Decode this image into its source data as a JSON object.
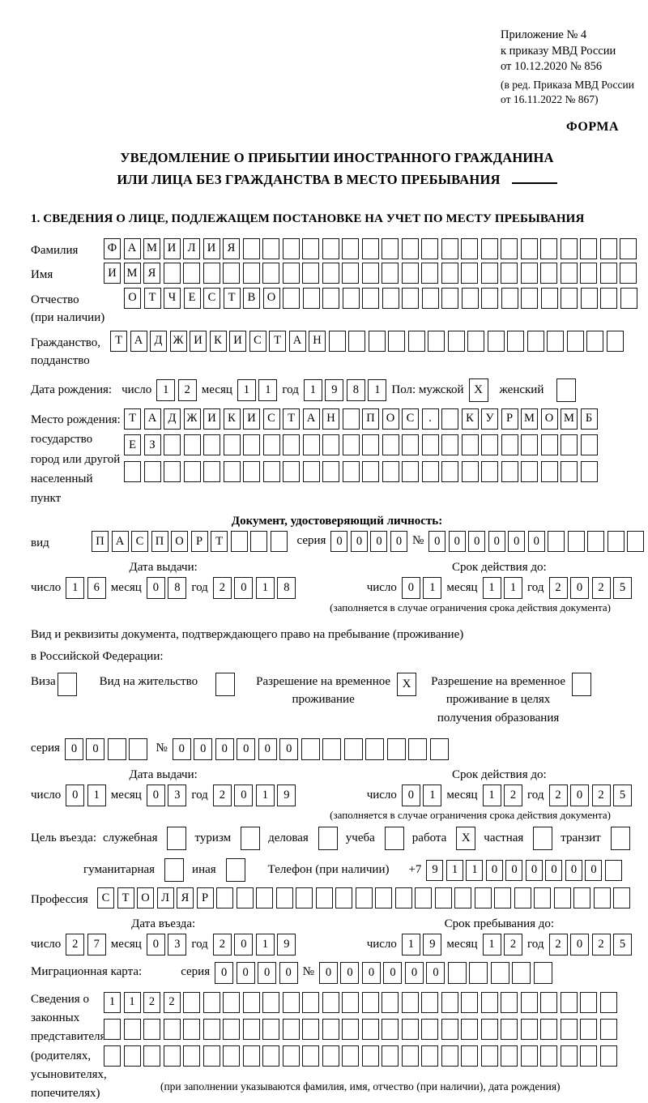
{
  "ref": {
    "lines": [
      "Приложение № 4",
      "к приказу МВД России",
      "от 10.12.2020 № 856"
    ],
    "amend_lines": [
      "(в ред. Приказа МВД России",
      "от 16.11.2022 № 867)"
    ],
    "form_marker": "ФОРМА"
  },
  "title": {
    "line1": "УВЕДОМЛЕНИЕ О ПРИБЫТИИ ИНОСТРАННОГО ГРАЖДАНИНА",
    "line2": "ИЛИ ЛИЦА БЕЗ ГРАЖДАНСТВА В МЕСТО ПРЕБЫВАНИЯ"
  },
  "section1_heading": "1. СВЕДЕНИЯ О ЛИЦЕ, ПОДЛЕЖАЩЕМ ПОСТАНОВКЕ НА УЧЕТ ПО МЕСТУ ПРЕБЫВАНИЯ",
  "labels": {
    "surname": "Фамилия",
    "given_name": "Имя",
    "patronymic": "Отчество",
    "patronymic_note": "(при наличии)",
    "citizenship_line1": "Гражданство,",
    "citizenship_line2": "подданство",
    "birth_date": "Дата рождения:",
    "day": "число",
    "month": "месяц",
    "year": "год",
    "sex_male": "Пол: мужской",
    "sex_female": "женский",
    "birth_place_line1": "Место рождения:",
    "birth_place_line2": "государство",
    "birth_place_line3": "город или другой",
    "birth_place_line4": "населенный пункт",
    "identity_doc_heading": "Документ, удостоверяющий личность:",
    "doc_type": "вид",
    "series": "серия",
    "number": "№",
    "validity_note": "(заполняется в случае ограничения срока действия документа)",
    "residence_doc_line1": "Вид и реквизиты документа, подтверждающего право на пребывание (проживание)",
    "residence_doc_line2": "в Российской Федерации:",
    "visa": "Виза",
    "residence_permit": "Вид на жительство",
    "temp_residence_line1": "Разрешение на временное",
    "temp_residence_line2": "проживание",
    "temp_edu_line1": "Разрешение на временное",
    "temp_edu_line2": "проживание в целях",
    "temp_edu_line3": "получения образования",
    "entry_purpose": "Цель въезда:",
    "purpose_official": "служебная",
    "purpose_tourism": "туризм",
    "purpose_business": "деловая",
    "purpose_study": "учеба",
    "purpose_work": "работа",
    "purpose_private": "частная",
    "purpose_transit": "транзит",
    "purpose_humanitarian": "гуманитарная",
    "purpose_other": "иная",
    "phone": "Телефон (при наличии)",
    "phone_prefix": "+7",
    "profession": "Профессия",
    "migration_card": "Миграционная карта:",
    "guardian_line1": "Сведения о",
    "guardian_line2": "законных",
    "guardian_line3": "представителях",
    "guardian_line4": "(родителях,",
    "guardian_line5": "усыновителях,",
    "guardian_line6": "попечителях)",
    "guardian_note": "(при заполнении указываются фамилия, имя, отчество (при наличии), дата рождения)"
  },
  "grids": {
    "surname": {
      "cells": [
        "Ф",
        "А",
        "М",
        "И",
        "Л",
        "И",
        "Я"
      ],
      "total": 27
    },
    "given_name": {
      "cells": [
        "И",
        "М",
        "Я"
      ],
      "total": 27
    },
    "patronymic": {
      "cells": [
        "О",
        "Т",
        "Ч",
        "Е",
        "С",
        "Т",
        "В",
        "О"
      ],
      "total": 26
    },
    "citizenship": {
      "cells": [
        "Т",
        "А",
        "Д",
        "Ж",
        "И",
        "К",
        "И",
        "С",
        "Т",
        "А",
        "Н"
      ],
      "total": 26
    },
    "birth_day": {
      "cells": [
        "1",
        "2"
      ]
    },
    "birth_month": {
      "cells": [
        "1",
        "1"
      ]
    },
    "birth_year": {
      "cells": [
        "1",
        "9",
        "8",
        "1"
      ]
    },
    "birthplace_row1": {
      "cells": [
        "Т",
        "А",
        "Д",
        "Ж",
        "И",
        "К",
        "И",
        "С",
        "Т",
        "А",
        "Н",
        "",
        "П",
        "О",
        "С",
        ".",
        "",
        "К",
        "У",
        "Р",
        "М",
        "О",
        "М",
        "Б"
      ],
      "total": 24
    },
    "birthplace_row2": {
      "cells": [
        "Е",
        "З"
      ],
      "total": 24
    },
    "birthplace_row3": {
      "cells": [],
      "total": 24
    },
    "doc_type": {
      "cells": [
        "П",
        "А",
        "С",
        "П",
        "О",
        "Р",
        "Т"
      ],
      "total": 10
    },
    "doc_series": {
      "cells": [
        "0",
        "0",
        "0",
        "0"
      ],
      "total": 4
    },
    "doc_number": {
      "cells": [
        "0",
        "0",
        "0",
        "0",
        "0",
        "0"
      ],
      "total": 11
    },
    "res_series": {
      "cells": [
        "0",
        "0"
      ],
      "total": 4
    },
    "res_number": {
      "cells": [
        "0",
        "0",
        "0",
        "0",
        "0",
        "0"
      ],
      "total": 13
    },
    "phone": {
      "cells": [
        "9",
        "1",
        "1",
        "0",
        "0",
        "0",
        "0",
        "0",
        "0"
      ],
      "total": 10
    },
    "profession": {
      "cells": [
        "С",
        "Т",
        "О",
        "Л",
        "Я",
        "Р"
      ],
      "total": 27
    },
    "mig_series": {
      "cells": [
        "0",
        "0",
        "0",
        "0"
      ],
      "total": 4
    },
    "mig_number": {
      "cells": [
        "0",
        "0",
        "0",
        "0",
        "0",
        "0"
      ],
      "total": 11
    },
    "guardians_row1": {
      "cells": [
        "1",
        "1",
        "2",
        "2"
      ],
      "total": 26
    },
    "guardians_row2": {
      "cells": [],
      "total": 26
    },
    "guardians_row3": {
      "cells": [],
      "total": 26
    }
  },
  "dates": {
    "passport_issue": {
      "header": "Дата выдачи:",
      "day": {
        "cells": [
          "1",
          "6"
        ]
      },
      "month": {
        "cells": [
          "0",
          "8"
        ]
      },
      "year": {
        "cells": [
          "2",
          "0",
          "1",
          "8"
        ]
      }
    },
    "passport_valid": {
      "header": "Срок действия до:",
      "day": {
        "cells": [
          "0",
          "1"
        ]
      },
      "month": {
        "cells": [
          "1",
          "1"
        ]
      },
      "year": {
        "cells": [
          "2",
          "0",
          "2",
          "5"
        ]
      }
    },
    "res_issue": {
      "header": "Дата выдачи:",
      "day": {
        "cells": [
          "0",
          "1"
        ]
      },
      "month": {
        "cells": [
          "0",
          "3"
        ]
      },
      "year": {
        "cells": [
          "2",
          "0",
          "1",
          "9"
        ]
      }
    },
    "res_valid": {
      "header": "Срок действия до:",
      "day": {
        "cells": [
          "0",
          "1"
        ]
      },
      "month": {
        "cells": [
          "1",
          "2"
        ]
      },
      "year": {
        "cells": [
          "2",
          "0",
          "2",
          "5"
        ]
      }
    },
    "entry_date": {
      "header": "Дата въезда:",
      "day": {
        "cells": [
          "2",
          "7"
        ]
      },
      "month": {
        "cells": [
          "0",
          "3"
        ]
      },
      "year": {
        "cells": [
          "2",
          "0",
          "1",
          "9"
        ]
      }
    },
    "stay_until": {
      "header": "Срок пребывания до:",
      "day": {
        "cells": [
          "1",
          "9"
        ]
      },
      "month": {
        "cells": [
          "1",
          "2"
        ]
      },
      "year": {
        "cells": [
          "2",
          "0",
          "2",
          "5"
        ]
      }
    }
  },
  "checks": {
    "male": "X",
    "female": "",
    "visa": "",
    "residence_permit": "",
    "temp_residence": "X",
    "temp_residence_edu": "",
    "official": "",
    "tourism": "",
    "business": "",
    "study": "",
    "work": "X",
    "private": "",
    "transit": "",
    "humanitarian": "",
    "other": ""
  }
}
